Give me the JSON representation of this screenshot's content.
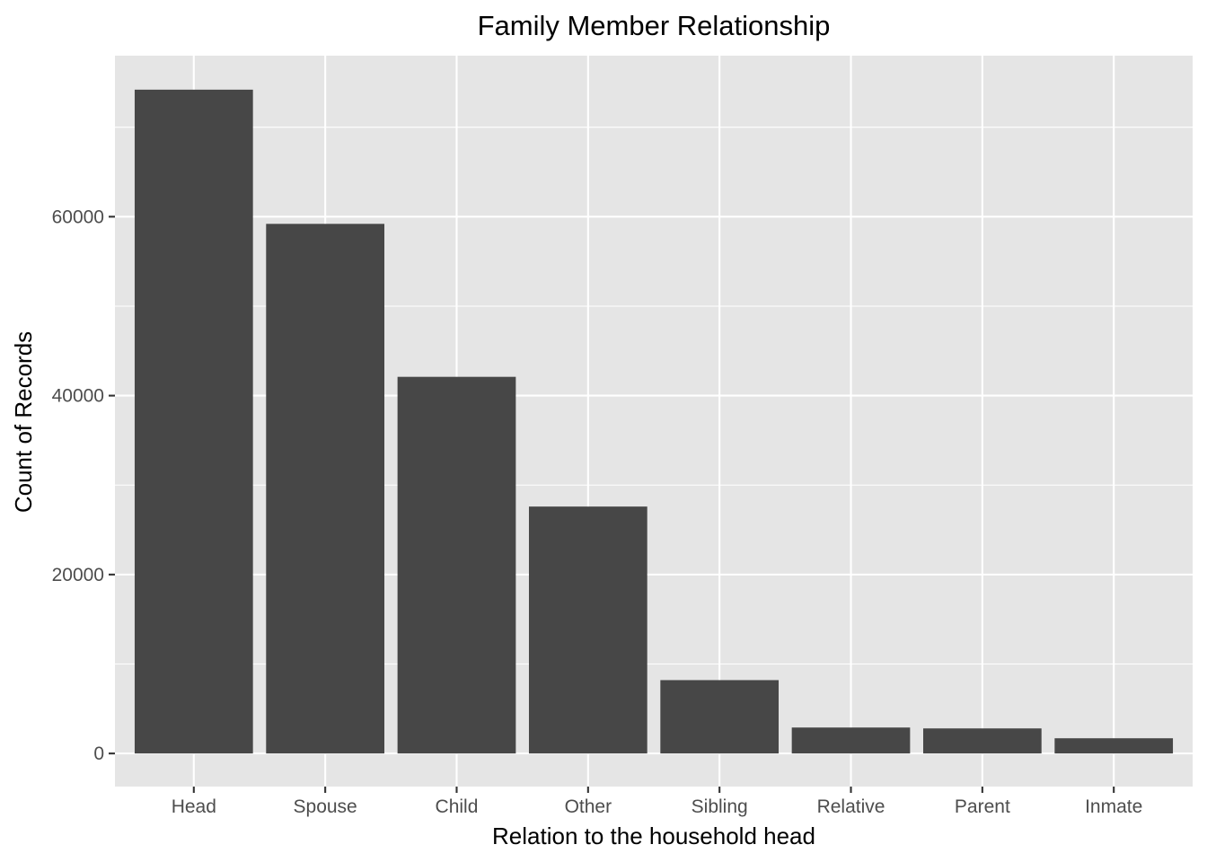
{
  "chart_data": {
    "type": "bar",
    "title": "Family Member Relationship",
    "xlabel": "Relation to the household head",
    "ylabel": "Count of Records",
    "categories": [
      "Head",
      "Spouse",
      "Child",
      "Other",
      "Sibling",
      "Relative",
      "Parent",
      "Inmate"
    ],
    "values": [
      74200,
      59200,
      42100,
      27600,
      8200,
      2900,
      2800,
      1700
    ],
    "ylim": [
      -3700,
      78000
    ],
    "yticks": [
      0,
      20000,
      40000,
      60000
    ],
    "ytick_labels": [
      "0",
      "20000",
      "40000",
      "60000"
    ],
    "grid": true,
    "colors": {
      "bar": "#474747",
      "panel": "#e5e5e5",
      "grid": "#ffffff"
    }
  }
}
